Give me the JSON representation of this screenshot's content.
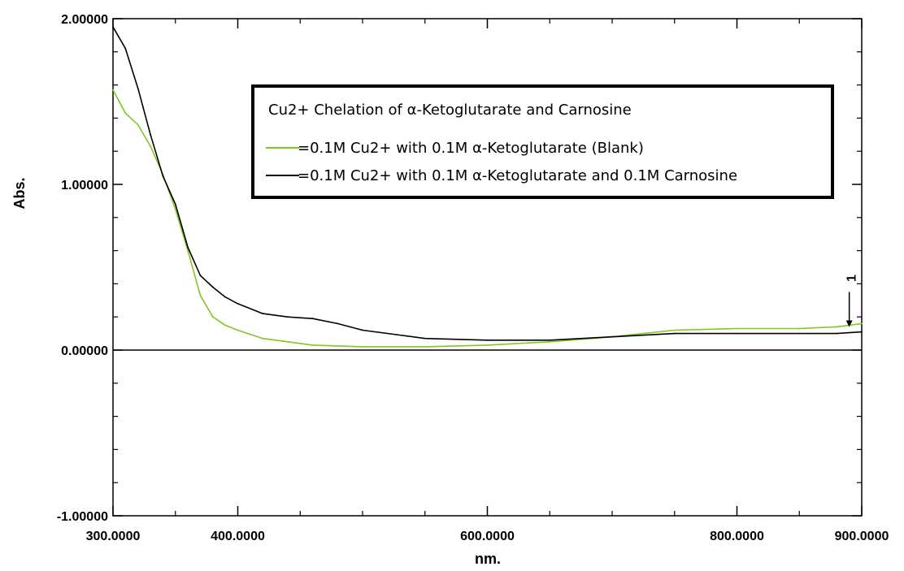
{
  "chart_data": {
    "type": "line",
    "xlabel": "nm.",
    "ylabel": "Abs.",
    "xlim": [
      300,
      900
    ],
    "ylim": [
      -1,
      2
    ],
    "x_ticks": [
      300,
      400,
      600,
      800,
      900
    ],
    "x_tick_labels": [
      "300.0000",
      "400.0000",
      "600.0000",
      "800.0000",
      "900.0000"
    ],
    "y_ticks": [
      -1,
      0,
      1,
      2
    ],
    "y_tick_labels": [
      "-1.00000",
      "0.00000",
      "1.00000",
      "2.00000"
    ],
    "grid": false,
    "legend": {
      "placement": "top-right",
      "title": "Cu2+ Chelation of α-Ketoglutarate and Carnosine",
      "entries": [
        "=0.1M Cu2+ with 0.1M α-Ketoglutarate (Blank)",
        "=0.1M Cu2+ with 0.1M α-Ketoglutarate and 0.1M Carnosine"
      ]
    },
    "annotation": {
      "text": "1",
      "x": 890,
      "y": 0.13
    },
    "series": [
      {
        "color": "#7ec820",
        "x": [
          300,
          310,
          320,
          330,
          340,
          350,
          360,
          370,
          380,
          390,
          400,
          420,
          440,
          460,
          480,
          500,
          550,
          600,
          650,
          700,
          750,
          800,
          850,
          880,
          900
        ],
        "y": [
          1.57,
          1.43,
          1.36,
          1.23,
          1.06,
          0.85,
          0.6,
          0.33,
          0.2,
          0.15,
          0.12,
          0.07,
          0.05,
          0.03,
          0.025,
          0.02,
          0.02,
          0.03,
          0.05,
          0.08,
          0.12,
          0.13,
          0.13,
          0.14,
          0.16
        ]
      },
      {
        "color": "#000000",
        "x": [
          300,
          310,
          320,
          330,
          340,
          350,
          360,
          370,
          380,
          390,
          400,
          420,
          440,
          460,
          480,
          500,
          550,
          600,
          650,
          700,
          750,
          800,
          850,
          880,
          900
        ],
        "y": [
          1.95,
          1.82,
          1.58,
          1.3,
          1.05,
          0.88,
          0.62,
          0.45,
          0.38,
          0.32,
          0.28,
          0.22,
          0.2,
          0.19,
          0.16,
          0.12,
          0.07,
          0.06,
          0.06,
          0.08,
          0.1,
          0.1,
          0.1,
          0.1,
          0.11
        ]
      }
    ]
  }
}
